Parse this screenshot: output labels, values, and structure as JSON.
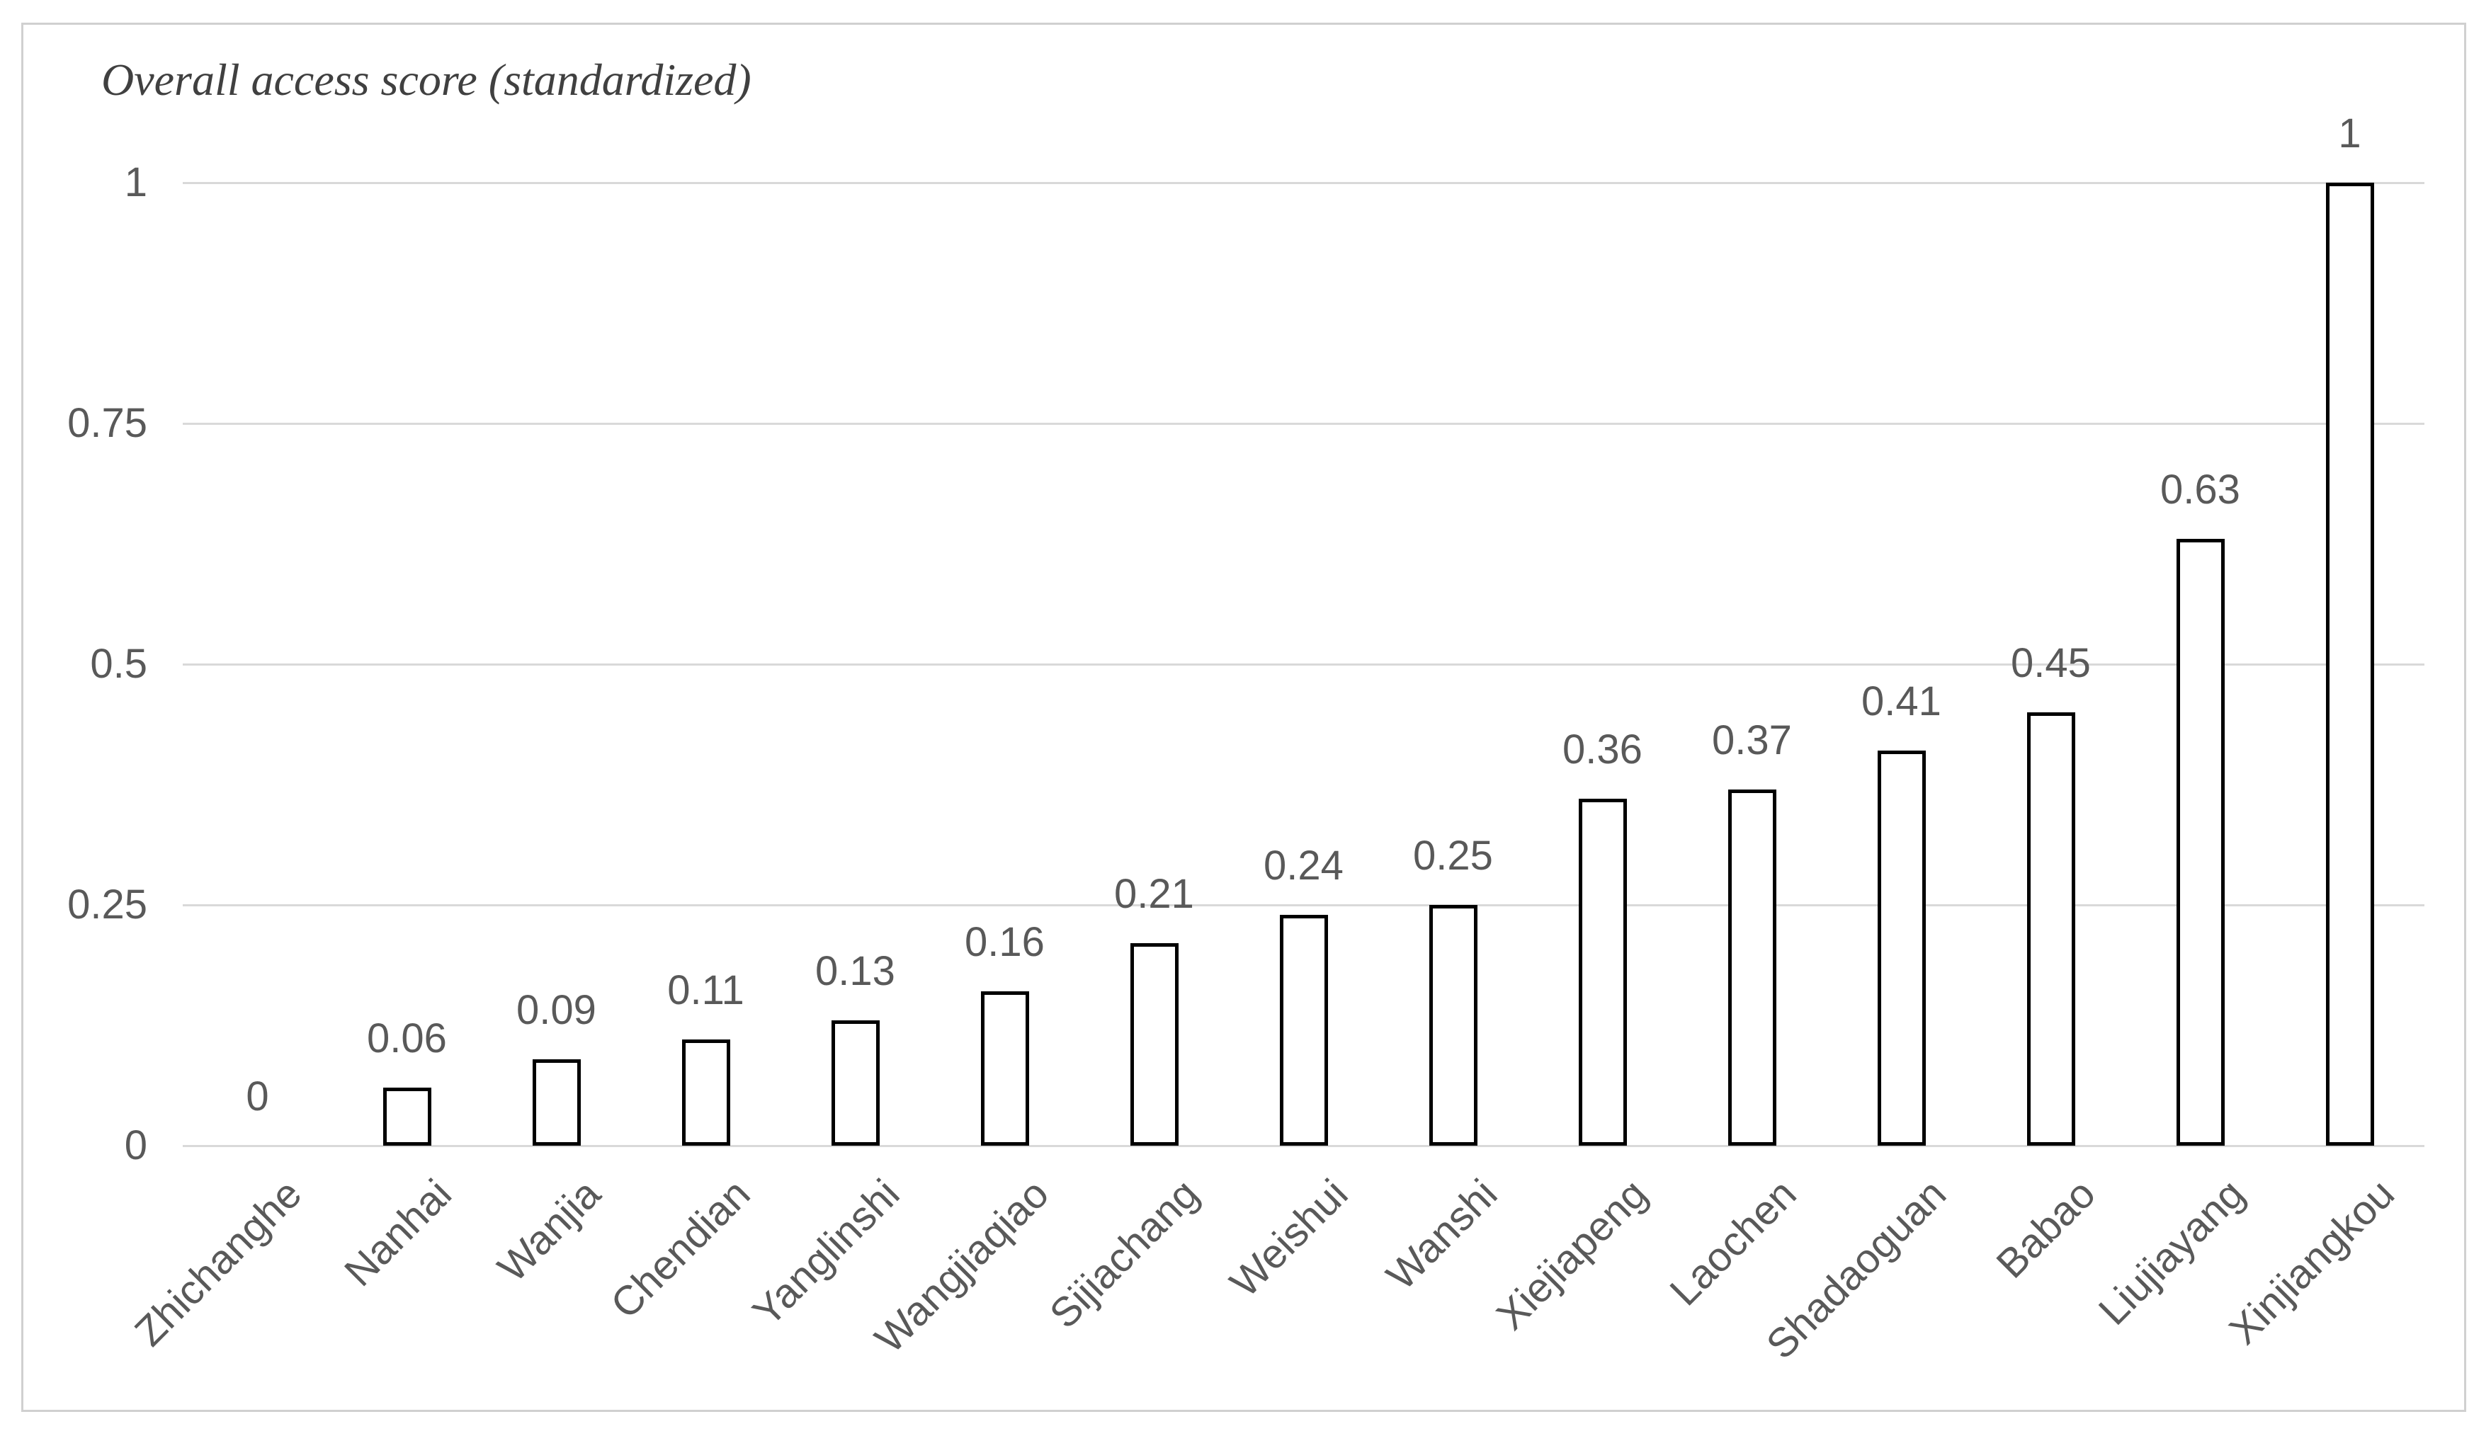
{
  "chart_data": {
    "type": "bar",
    "title": "Overall access score (standardized)",
    "categories": [
      "Zhichanghe",
      "Nanhai",
      "Wanjia",
      "Chendian",
      "Yanglinshi",
      "Wangjiaqiao",
      "Sijiachang",
      "Weishui",
      "Wanshi",
      "Xiejiapeng",
      "Laochen",
      "Shadaoguan",
      "Babao",
      "Liujiayang",
      "Xinjiangkou"
    ],
    "values": [
      0,
      0.06,
      0.09,
      0.11,
      0.13,
      0.16,
      0.21,
      0.24,
      0.25,
      0.36,
      0.37,
      0.41,
      0.45,
      0.63,
      1
    ],
    "data_labels": [
      "0",
      "0.06",
      "0.09",
      "0.11",
      "0.13",
      "0.16",
      "0.21",
      "0.24",
      "0.25",
      "0.36",
      "0.37",
      "0.41",
      "0.45",
      "0.63",
      "1"
    ],
    "xlabel": "",
    "ylabel": "",
    "ylim": [
      0,
      1
    ],
    "y_ticks": [
      {
        "value": 1,
        "label": "1"
      },
      {
        "value": 0.75,
        "label": "0.75"
      },
      {
        "value": 0.5,
        "label": "0.5"
      },
      {
        "value": 0.25,
        "label": "0.25"
      },
      {
        "value": 0,
        "label": "0"
      }
    ],
    "grid": true,
    "legend": false,
    "x_label_rotation_deg": -45,
    "colors": {
      "bar_fill": "#ffffff",
      "bar_border": "#000000",
      "gridline": "#d9d9d9",
      "tick_text": "#595959",
      "data_label_text": "#595959",
      "title_text": "#404040",
      "frame_border": "#d0d0d0",
      "background": "#ffffff"
    }
  }
}
